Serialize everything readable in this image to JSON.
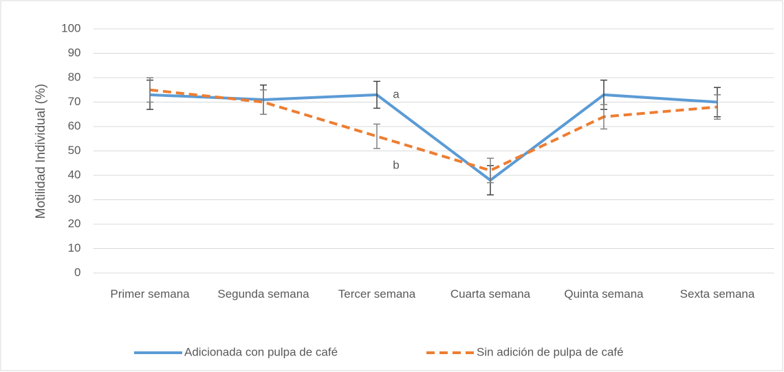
{
  "chart_data": {
    "type": "line",
    "y_label": "Motilidad Individual (%)",
    "categories": [
      "Primer semana",
      "Segunda semana",
      "Tercer semana",
      "Cuarta semana",
      "Quinta semana",
      "Sexta semana"
    ],
    "series": [
      {
        "name": "Adicionada con pulpa de café",
        "color": "#5b9bd5",
        "dashed": false,
        "values": [
          73,
          71,
          73,
          38,
          73,
          70
        ],
        "errors": [
          6,
          6,
          5.5,
          6,
          6,
          6
        ]
      },
      {
        "name": "Sin adición de pulpa de café",
        "color": "#ed7d31",
        "dashed": true,
        "values": [
          75,
          70,
          56,
          42,
          64,
          68
        ],
        "errors": [
          5,
          5,
          5,
          5,
          5,
          5
        ]
      }
    ],
    "annotations": [
      {
        "text": "a",
        "category": 2,
        "y": 73
      },
      {
        "text": "b",
        "category": 2,
        "y": 44
      }
    ],
    "ylim": [
      0,
      100
    ],
    "yticks": [
      0,
      10,
      20,
      30,
      40,
      50,
      60,
      70,
      80,
      90,
      100
    ],
    "grid": true,
    "legend": "bottom"
  }
}
